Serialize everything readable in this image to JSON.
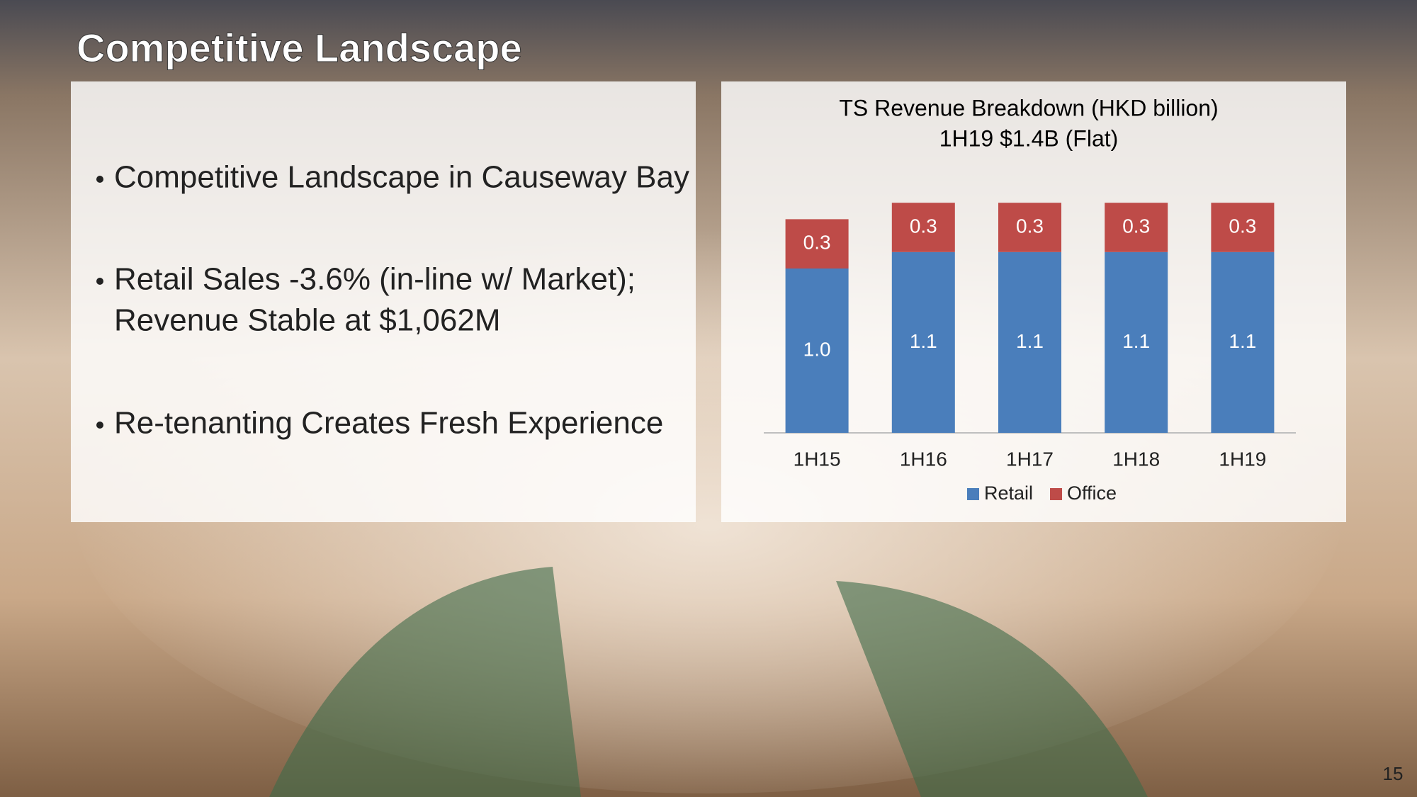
{
  "slide_title": "Competitive Landscape",
  "bullets": [
    [
      "Competitive Landscape in Causeway Bay"
    ],
    [
      "Retail Sales -3.6% (in-line w/ Market);",
      "Revenue Stable at $1,062M"
    ],
    [
      "Re-tenanting Creates Fresh Experience"
    ]
  ],
  "page_number": "15",
  "chart_data": {
    "type": "stacked_bar",
    "title": "TS Revenue Breakdown (HKD billion)",
    "subtitle": "1H19 $1.4B (Flat)",
    "categories": [
      "1H15",
      "1H16",
      "1H17",
      "1H18",
      "1H19"
    ],
    "series": [
      {
        "name": "Retail",
        "color": "#4a7ebb",
        "values": [
          1.0,
          1.1,
          1.1,
          1.1,
          1.1
        ],
        "value_labels": [
          "1.0",
          "1.1",
          "1.1",
          "1.1",
          "1.1"
        ]
      },
      {
        "name": "Office",
        "color": "#be4b48",
        "values": [
          0.3,
          0.3,
          0.3,
          0.3,
          0.3
        ]
      }
    ],
    "legend": "bottom"
  }
}
